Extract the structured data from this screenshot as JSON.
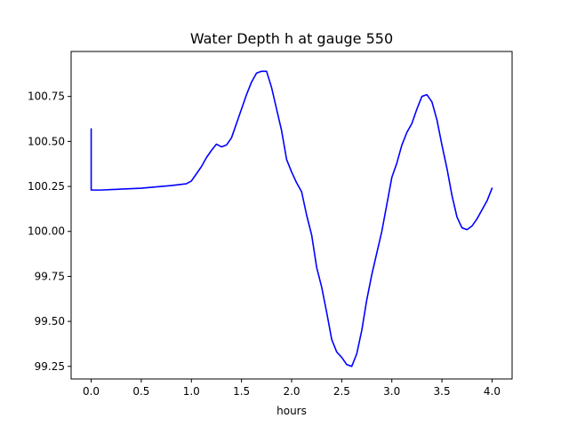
{
  "chart_data": {
    "type": "line",
    "title": "Water Depth h at gauge 550",
    "xlabel": "hours",
    "ylabel": "",
    "xlim": [
      -0.2,
      4.2
    ],
    "ylim": [
      99.18,
      101.0
    ],
    "x_ticks": [
      0.0,
      0.5,
      1.0,
      1.5,
      2.0,
      2.5,
      3.0,
      3.5,
      4.0
    ],
    "x_tick_labels": [
      "0.0",
      "0.5",
      "1.0",
      "1.5",
      "2.0",
      "2.5",
      "3.0",
      "3.5",
      "4.0"
    ],
    "y_ticks": [
      99.25,
      99.5,
      99.75,
      100.0,
      100.25,
      100.5,
      100.75
    ],
    "y_tick_labels": [
      "99.25",
      "99.50",
      "99.75",
      "100.00",
      "100.25",
      "100.50",
      "100.75"
    ],
    "grid": false,
    "series": [
      {
        "color": "#0000ff",
        "points": [
          [
            0.0,
            100.57
          ],
          [
            0.0,
            100.23
          ],
          [
            0.1,
            100.23
          ],
          [
            0.3,
            100.235
          ],
          [
            0.5,
            100.24
          ],
          [
            0.6,
            100.245
          ],
          [
            0.7,
            100.25
          ],
          [
            0.8,
            100.255
          ],
          [
            0.95,
            100.265
          ],
          [
            1.0,
            100.28
          ],
          [
            1.05,
            100.32
          ],
          [
            1.1,
            100.36
          ],
          [
            1.15,
            100.41
          ],
          [
            1.2,
            100.45
          ],
          [
            1.25,
            100.485
          ],
          [
            1.3,
            100.47
          ],
          [
            1.35,
            100.48
          ],
          [
            1.4,
            100.52
          ],
          [
            1.45,
            100.6
          ],
          [
            1.5,
            100.68
          ],
          [
            1.55,
            100.76
          ],
          [
            1.6,
            100.83
          ],
          [
            1.65,
            100.88
          ],
          [
            1.7,
            100.89
          ],
          [
            1.75,
            100.89
          ],
          [
            1.8,
            100.8
          ],
          [
            1.85,
            100.68
          ],
          [
            1.9,
            100.56
          ],
          [
            1.95,
            100.4
          ],
          [
            2.0,
            100.33
          ],
          [
            2.05,
            100.27
          ],
          [
            2.1,
            100.22
          ],
          [
            2.15,
            100.09
          ],
          [
            2.2,
            99.98
          ],
          [
            2.25,
            99.8
          ],
          [
            2.3,
            99.69
          ],
          [
            2.35,
            99.55
          ],
          [
            2.4,
            99.4
          ],
          [
            2.45,
            99.33
          ],
          [
            2.5,
            99.3
          ],
          [
            2.55,
            99.26
          ],
          [
            2.6,
            99.25
          ],
          [
            2.65,
            99.32
          ],
          [
            2.7,
            99.45
          ],
          [
            2.75,
            99.62
          ],
          [
            2.8,
            99.76
          ],
          [
            2.85,
            99.88
          ],
          [
            2.9,
            100.0
          ],
          [
            2.95,
            100.15
          ],
          [
            3.0,
            100.3
          ],
          [
            3.05,
            100.38
          ],
          [
            3.1,
            100.48
          ],
          [
            3.15,
            100.55
          ],
          [
            3.2,
            100.6
          ],
          [
            3.25,
            100.68
          ],
          [
            3.3,
            100.75
          ],
          [
            3.35,
            100.76
          ],
          [
            3.4,
            100.72
          ],
          [
            3.45,
            100.62
          ],
          [
            3.5,
            100.48
          ],
          [
            3.55,
            100.35
          ],
          [
            3.6,
            100.2
          ],
          [
            3.65,
            100.08
          ],
          [
            3.7,
            100.02
          ],
          [
            3.75,
            100.01
          ],
          [
            3.8,
            100.03
          ],
          [
            3.85,
            100.07
          ],
          [
            3.9,
            100.12
          ],
          [
            3.95,
            100.17
          ],
          [
            4.0,
            100.24
          ]
        ]
      }
    ]
  }
}
